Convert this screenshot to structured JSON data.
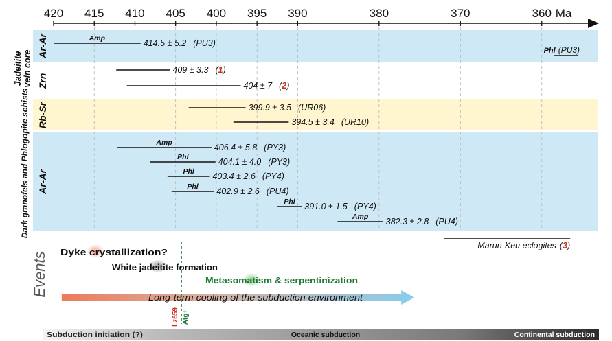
{
  "chart_data": {
    "type": "range",
    "x_axis": {
      "ticks": [
        420,
        415,
        410,
        405,
        400,
        395,
        390,
        380,
        370,
        360
      ],
      "unit_label": "Ma",
      "direction": "decreasing",
      "domain": [
        420,
        355
      ]
    },
    "groups": [
      {
        "label": "Jadeitite vein core"
      },
      {
        "label": "Dark granofels and Phlogopite schists"
      }
    ],
    "bands": [
      {
        "label": "Ar-Ar",
        "color": "#cfe8f6"
      },
      {
        "label": "Zrn",
        "color": "#ffffff"
      },
      {
        "label": "Rb-Sr",
        "color": "#fff6cf"
      },
      {
        "label": "Ar-Ar",
        "color": "#cfe8f6"
      }
    ],
    "ages": [
      {
        "mineral": "Amp",
        "value": "414.5 ± 5.2",
        "ref_prefix": "(",
        "ref": "PU3",
        "ref_suffix": ")",
        "start": 420,
        "end": 409.3,
        "ref_red": false
      },
      {
        "mineral": "Phl",
        "value": "",
        "ref_prefix": "(",
        "ref": "PU3",
        "ref_suffix": ")",
        "start": 358.5,
        "end": 355.5,
        "ref_red": false
      },
      {
        "mineral": "",
        "value": "409 ± 3.3",
        "ref_prefix": "(",
        "ref": "1",
        "ref_suffix": ")",
        "start": 412.3,
        "end": 405.7,
        "ref_red": true
      },
      {
        "mineral": "",
        "value": "404 ± 7",
        "ref_prefix": "(",
        "ref": "2",
        "ref_suffix": ")",
        "start": 411,
        "end": 397,
        "ref_red": true
      },
      {
        "mineral": "",
        "value": "399.9 ± 3.5",
        "ref_prefix": "(",
        "ref": "UR06",
        "ref_suffix": ")",
        "start": 403.4,
        "end": 396.4,
        "ref_red": false
      },
      {
        "mineral": "",
        "value": "394.5 ± 3.4",
        "ref_prefix": "(",
        "ref": "UR10",
        "ref_suffix": ")",
        "start": 397.9,
        "end": 391.1,
        "ref_red": false
      },
      {
        "mineral": "Amp",
        "value": "406.4 ± 5.8",
        "ref_prefix": "(",
        "ref": "PY3",
        "ref_suffix": ")",
        "start": 412.2,
        "end": 400.6,
        "ref_red": false
      },
      {
        "mineral": "Phl",
        "value": "404.1 ± 4.0",
        "ref_prefix": "(",
        "ref": "PY3",
        "ref_suffix": ")",
        "start": 408.1,
        "end": 400.1,
        "ref_red": false
      },
      {
        "mineral": "Phl",
        "value": "403.4 ± 2.6",
        "ref_prefix": "(",
        "ref": "PY4",
        "ref_suffix": ")",
        "start": 406,
        "end": 400.8,
        "ref_red": false
      },
      {
        "mineral": "Phl",
        "value": "402.9 ± 2.6",
        "ref_prefix": "(",
        "ref": "PU4",
        "ref_suffix": ")",
        "start": 405.5,
        "end": 400.3,
        "ref_red": false
      },
      {
        "mineral": "Phl",
        "value": "391.0 ± 1.5",
        "ref_prefix": "(",
        "ref": "PY4",
        "ref_suffix": ")",
        "start": 392.5,
        "end": 389.5,
        "ref_red": false
      },
      {
        "mineral": "Amp",
        "value": "382.3 ± 2.8",
        "ref_prefix": "(",
        "ref": "PU4",
        "ref_suffix": ")",
        "start": 385.1,
        "end": 379.5,
        "ref_red": false
      }
    ],
    "eclogites": {
      "label": "Marun-Keu eclogites",
      "ref_prefix": "(",
      "ref": "3",
      "ref_suffix": ")",
      "start": 372,
      "end": 356.5
    },
    "events": {
      "title": "Events",
      "items": [
        {
          "label": "Dyke crystallization?",
          "color": "#111111",
          "glow": "#f3a08a",
          "at": 415
        },
        {
          "label": "White jadeitite formation",
          "color": "#111111",
          "glow": "#9a9a9a",
          "at": 406
        },
        {
          "label": "Metasomatism & serpentinization",
          "color": "#1e7a34",
          "glow": "#7cc47c",
          "at": 395
        }
      ],
      "cooling": {
        "label": "Long-term cooling of the subduction environment",
        "start": 419,
        "end": 376
      },
      "markers": [
        {
          "label": "Lz659",
          "color": "#d2281e"
        },
        {
          "label": "Atg+",
          "color": "#1e7a34"
        }
      ],
      "marker_at": 404.3
    },
    "phases": [
      {
        "label": "Subduction initiation (?)"
      },
      {
        "label": "Oceanic subduction"
      },
      {
        "label": "Continental subduction"
      }
    ]
  }
}
